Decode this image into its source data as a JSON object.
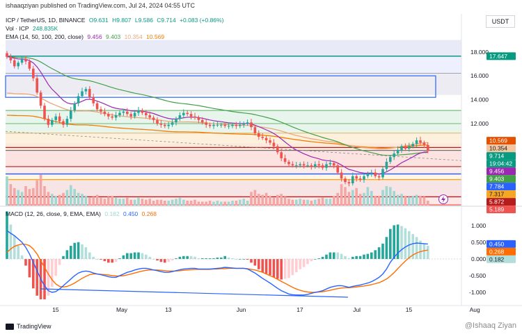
{
  "header": {
    "published": "ishaaqziyan published on TradingView.com, Jul 24, 2024 04:55 UTC"
  },
  "legend": {
    "symbol": "ICP / TetherUS, 1D, BINANCE",
    "o": "O9.631",
    "h": "H9.807",
    "l": "L9.586",
    "c": "C9.714",
    "chg": "+0.083 (+0.86%)",
    "vol_label": "Vol · ICP",
    "vol_value": "248.835K",
    "ema_label": "EMA (14, 50, 100, 200, close)",
    "ema14": "9.456",
    "ema50": "9.403",
    "ema100": "10.354",
    "ema200": "10.569"
  },
  "macd_legend": {
    "label": "MACD (12, 26, close, 9, EMA, EMA)",
    "hist": "0.182",
    "macd": "0.450",
    "signal": "0.268"
  },
  "currency": "USDT",
  "footer": {
    "brand": "TradingView",
    "watermark": "@Ishaaq Ziyan"
  },
  "colors": {
    "up": "#26a69a",
    "down": "#ef5350",
    "ema14": "#9c27b0",
    "ema50": "#43a047",
    "ema100": "#e8a87c",
    "ema200": "#f57c00",
    "macd": "#2962ff",
    "signal": "#ff6d00"
  },
  "chart_data": [
    {
      "type": "candlestick",
      "x_ticks": [
        "15",
        "May",
        "13",
        "Jun",
        "17",
        "Jul",
        "15",
        "Aug"
      ],
      "y_ticks": [
        "18.000",
        "16.000",
        "14.000",
        "12.000"
      ],
      "ylim": [
        4.5,
        19
      ],
      "horizontal_levels": [
        "17.647",
        "7.784",
        "7.317",
        "5.872",
        "5.189"
      ],
      "price_labels": [
        {
          "text": "17.647",
          "bg": "#089981",
          "fg": "#ffffff",
          "value": 17.647
        },
        {
          "text": "10.569",
          "bg": "#e65100",
          "fg": "#ffffff",
          "value": 10.569
        },
        {
          "text": "10.354",
          "bg": "#f2c7a0",
          "fg": "#131722",
          "value": 10.354
        },
        {
          "text": "9.714",
          "bg": "#089981",
          "fg": "#ffffff",
          "value": 9.714
        },
        {
          "text": "19:04:42",
          "bg": "#089981",
          "fg": "#ffffff",
          "value": 9.714
        },
        {
          "text": "9.456",
          "bg": "#9c27b0",
          "fg": "#ffffff",
          "value": 9.456
        },
        {
          "text": "9.403",
          "bg": "#43a047",
          "fg": "#ffffff",
          "value": 9.403
        },
        {
          "text": "7.784",
          "bg": "#2962ff",
          "fg": "#ffffff",
          "value": 7.784
        },
        {
          "text": "7.317",
          "bg": "#f5a623",
          "fg": "#131722",
          "value": 7.317
        },
        {
          "text": "5.872",
          "bg": "#b71c1c",
          "fg": "#ffffff",
          "value": 5.872
        },
        {
          "text": "5.189",
          "bg": "#ef5350",
          "fg": "#ffffff",
          "value": 5.189
        }
      ],
      "close": [
        17.6,
        17.3,
        16.8,
        17.1,
        17.4,
        17.2,
        16.6,
        15.8,
        14.6,
        13.5,
        12.4,
        11.9,
        12.3,
        12.6,
        12.2,
        11.9,
        12.4,
        13.1,
        13.7,
        14.3,
        14.7,
        14.9,
        14.2,
        13.7,
        13.2,
        13.0,
        12.8,
        12.6,
        12.5,
        12.7,
        12.9,
        13.0,
        12.8,
        12.6,
        12.9,
        13.1,
        12.9,
        12.7,
        12.5,
        12.3,
        12.0,
        11.9,
        11.8,
        11.9,
        12.1,
        12.4,
        12.7,
        12.9,
        12.8,
        12.6,
        12.5,
        12.3,
        12.1,
        11.9,
        11.8,
        11.9,
        11.9,
        11.9,
        11.8,
        11.8,
        11.9,
        11.8,
        11.9,
        12.0,
        12.1,
        11.7,
        11.2,
        10.9,
        10.8,
        10.6,
        10.4,
        10.1,
        9.6,
        9.1,
        8.8,
        8.6,
        8.5,
        8.5,
        8.6,
        8.5,
        8.5,
        8.4,
        8.6,
        8.5,
        8.3,
        8.6,
        8.7,
        8.5,
        7.9,
        7.4,
        7.1,
        7.0,
        7.6,
        7.4,
        7.3,
        7.6,
        7.8,
        7.9,
        7.6,
        7.5,
        8.2,
        8.8,
        9.2,
        9.5,
        9.8,
        10.1,
        9.9,
        10.1,
        10.3,
        10.6,
        10.4,
        10.2,
        9.71
      ],
      "volume": [
        3.0,
        2.2,
        1.8,
        1.6,
        1.4,
        2.0,
        1.7,
        1.8,
        2.6,
        3.2,
        2.0,
        1.4,
        1.2,
        1.0,
        1.1,
        1.3,
        1.6,
        2.1,
        1.7,
        1.3,
        1.2,
        1.0,
        0.8,
        0.9,
        1.1,
        0.8,
        0.7,
        0.9,
        1.0,
        0.8,
        0.7,
        0.7,
        0.8,
        0.6,
        0.6,
        0.8,
        0.7,
        0.6,
        0.7,
        0.5,
        0.6,
        0.6,
        0.5,
        0.5,
        0.6,
        0.7,
        0.8,
        0.6,
        0.5,
        0.5,
        0.6,
        0.4,
        0.4,
        0.4,
        0.5,
        0.4,
        0.5,
        0.4,
        0.4,
        0.4,
        0.5,
        0.5,
        0.6,
        0.7,
        0.5,
        1.4,
        1.6,
        1.2,
        1.1,
        1.3,
        1.0,
        0.8,
        1.1,
        1.2,
        0.9,
        0.7,
        0.6,
        0.6,
        0.7,
        0.6,
        0.6,
        0.5,
        0.6,
        0.7,
        0.8,
        0.7,
        0.7,
        1.0,
        1.3,
        2.2,
        1.9,
        1.4,
        1.6,
        1.8,
        1.2,
        1.3,
        1.9,
        1.5,
        1.0,
        1.0,
        1.6,
        2.0,
        1.9,
        1.5,
        1.1,
        1.2,
        1.0,
        0.9,
        1.0,
        1.1,
        1.0,
        0.9,
        0.5
      ]
    },
    {
      "type": "line",
      "title": "MACD (12, 26, close, 9, EMA, EMA)",
      "y_ticks": [
        "1.000",
        "0.500",
        "0.000",
        "-0.500",
        "-1.000"
      ],
      "ylim": [
        -1.25,
        1.25
      ],
      "series": [
        {
          "name": "MACD",
          "values": [
            0.85,
            0.77,
            0.7,
            0.6,
            0.5,
            0.35,
            0.15,
            -0.1,
            -0.35,
            -0.6,
            -0.8,
            -0.95,
            -1.0,
            -0.98,
            -0.9,
            -0.8,
            -0.7,
            -0.6,
            -0.5,
            -0.42,
            -0.38,
            -0.36,
            -0.38,
            -0.42,
            -0.45,
            -0.47,
            -0.5,
            -0.53,
            -0.55,
            -0.55,
            -0.5,
            -0.45,
            -0.4,
            -0.37,
            -0.33,
            -0.3,
            -0.28,
            -0.28,
            -0.3,
            -0.33,
            -0.35,
            -0.38,
            -0.4,
            -0.4,
            -0.38,
            -0.35,
            -0.32,
            -0.3,
            -0.29,
            -0.28,
            -0.28,
            -0.3,
            -0.3,
            -0.3,
            -0.3,
            -0.29,
            -0.28,
            -0.27,
            -0.25,
            -0.26,
            -0.27,
            -0.28,
            -0.28,
            -0.28,
            -0.3,
            -0.36,
            -0.42,
            -0.5,
            -0.58,
            -0.65,
            -0.72,
            -0.8,
            -0.88,
            -0.95,
            -1.0,
            -1.05,
            -1.07,
            -1.08,
            -1.08,
            -1.08,
            -1.06,
            -1.03,
            -1.0,
            -0.98,
            -0.95,
            -0.9,
            -0.85,
            -0.82,
            -0.8,
            -0.8,
            -0.82,
            -0.85,
            -0.82,
            -0.8,
            -0.78,
            -0.75,
            -0.72,
            -0.68,
            -0.62,
            -0.55,
            -0.45,
            -0.3,
            -0.1,
            0.05,
            0.18,
            0.28,
            0.36,
            0.42,
            0.46,
            0.48,
            0.47,
            0.46,
            0.45
          ]
        },
        {
          "name": "Signal",
          "values": [
            0.2,
            0.3,
            0.38,
            0.42,
            0.45,
            0.44,
            0.4,
            0.3,
            0.15,
            -0.05,
            -0.25,
            -0.45,
            -0.62,
            -0.75,
            -0.82,
            -0.84,
            -0.82,
            -0.78,
            -0.72,
            -0.65,
            -0.58,
            -0.52,
            -0.47,
            -0.45,
            -0.45,
            -0.46,
            -0.47,
            -0.48,
            -0.5,
            -0.51,
            -0.51,
            -0.5,
            -0.48,
            -0.45,
            -0.42,
            -0.39,
            -0.36,
            -0.34,
            -0.33,
            -0.33,
            -0.33,
            -0.34,
            -0.35,
            -0.36,
            -0.36,
            -0.36,
            -0.35,
            -0.34,
            -0.33,
            -0.32,
            -0.31,
            -0.31,
            -0.31,
            -0.31,
            -0.31,
            -0.3,
            -0.3,
            -0.29,
            -0.29,
            -0.28,
            -0.28,
            -0.28,
            -0.28,
            -0.28,
            -0.29,
            -0.31,
            -0.33,
            -0.36,
            -0.4,
            -0.45,
            -0.5,
            -0.55,
            -0.61,
            -0.67,
            -0.73,
            -0.79,
            -0.85,
            -0.9,
            -0.94,
            -0.97,
            -0.99,
            -1.0,
            -1.0,
            -0.99,
            -0.98,
            -0.96,
            -0.94,
            -0.91,
            -0.89,
            -0.87,
            -0.86,
            -0.86,
            -0.85,
            -0.84,
            -0.82,
            -0.81,
            -0.79,
            -0.77,
            -0.74,
            -0.71,
            -0.66,
            -0.6,
            -0.51,
            -0.41,
            -0.29,
            -0.17,
            -0.06,
            0.04,
            0.12,
            0.18,
            0.22,
            0.25,
            0.268
          ]
        }
      ]
    }
  ]
}
